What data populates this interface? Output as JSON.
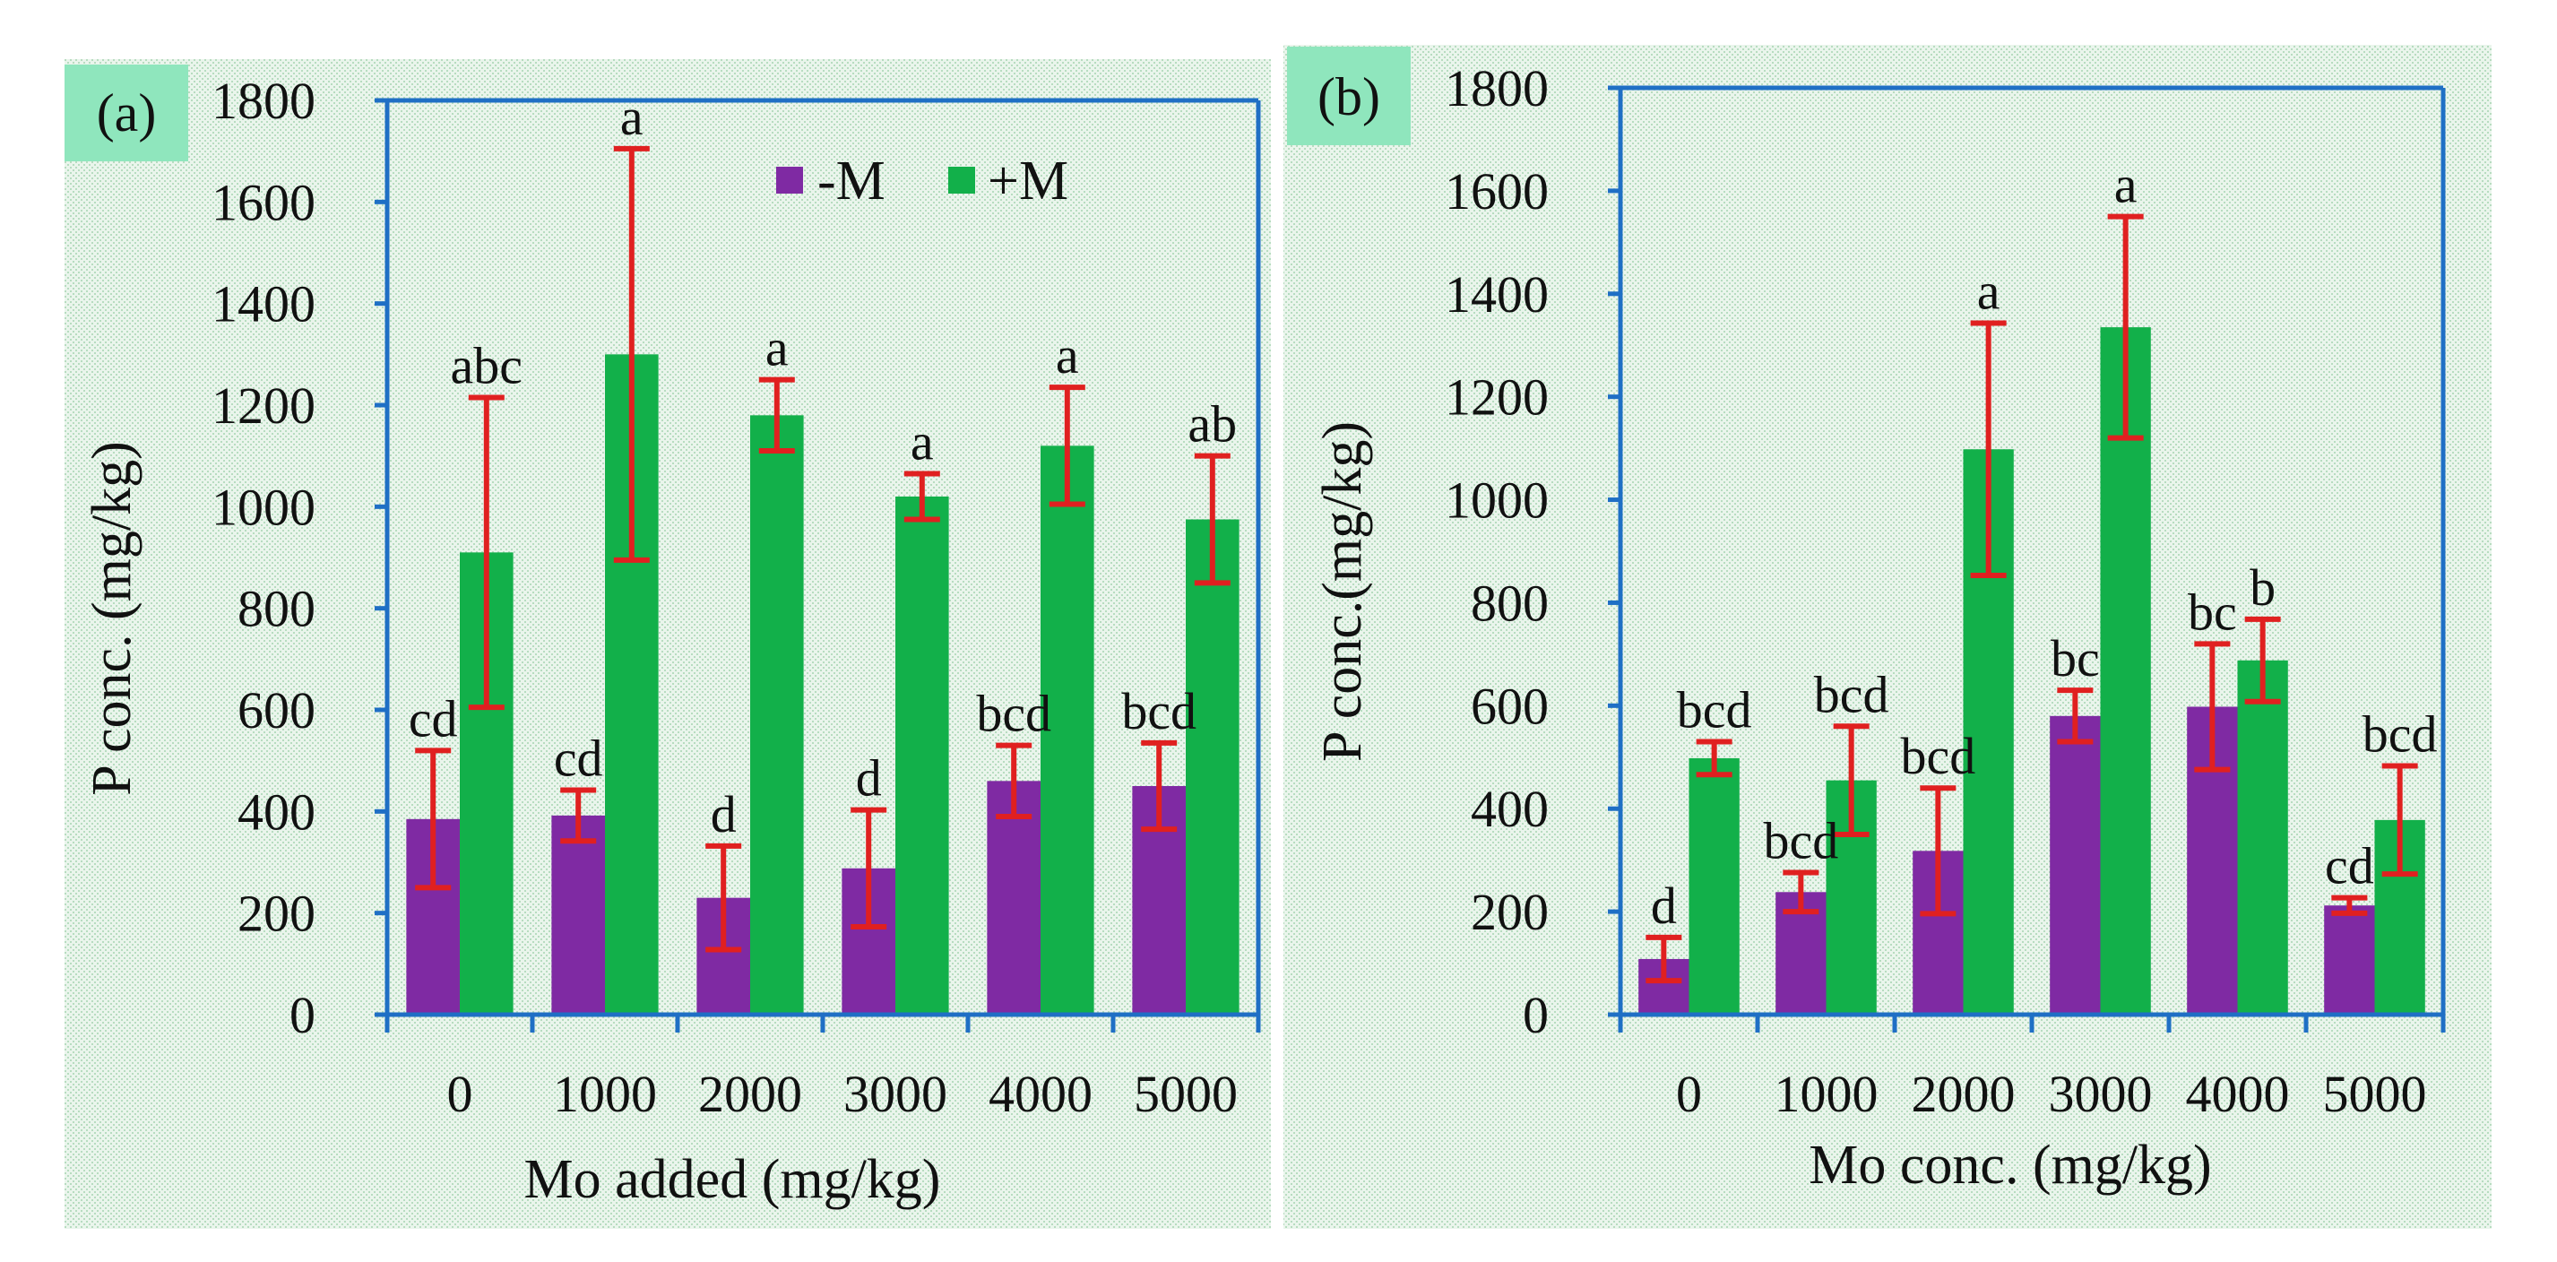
{
  "colors": {
    "minus_m": "#7f2aa3",
    "plus_m": "#12b04a",
    "axis": "#1f6fc5",
    "error_bar": "#e02020",
    "panel_bg": "#e8f3ea",
    "label_box": "#8fe6bd"
  },
  "chart_data": [
    {
      "type": "bar",
      "panel_label": "(a)",
      "xlabel": "Mo added (mg/kg)",
      "ylabel": "P conc. (mg/kg)",
      "ylim": [
        0,
        1800
      ],
      "yticks": [
        "0",
        "200",
        "400",
        "600",
        "800",
        "1000",
        "1200",
        "1400",
        "1600",
        "1800"
      ],
      "categories": [
        "0",
        "1000",
        "2000",
        "3000",
        "4000",
        "5000"
      ],
      "legend": {
        "position": "top-center",
        "entries": [
          "-M",
          "+M"
        ]
      },
      "series": [
        {
          "name": "-M",
          "values": [
            385,
            392,
            230,
            288,
            460,
            450
          ],
          "errors": [
            135,
            50,
            102,
            115,
            70,
            85
          ],
          "letters": [
            "cd",
            "cd",
            "d",
            "d",
            "bcd",
            "bcd"
          ]
        },
        {
          "name": "+M",
          "values": [
            910,
            1300,
            1180,
            1020,
            1120,
            975
          ],
          "errors": [
            305,
            405,
            70,
            45,
            115,
            125
          ],
          "letters": [
            "abc",
            "a",
            "a",
            "a",
            "a",
            "ab"
          ]
        }
      ]
    },
    {
      "type": "bar",
      "panel_label": "(b)",
      "xlabel": "Mo conc. (mg/kg)",
      "ylabel": "P conc.(mg/kg)",
      "ylim": [
        0,
        1800
      ],
      "yticks": [
        "0",
        "200",
        "400",
        "600",
        "800",
        "1000",
        "1200",
        "1400",
        "1600",
        "1800"
      ],
      "categories": [
        "0",
        "1000",
        "2000",
        "3000",
        "4000",
        "5000"
      ],
      "series": [
        {
          "name": "-M",
          "values": [
            108,
            238,
            318,
            580,
            598,
            212
          ],
          "errors": [
            42,
            38,
            122,
            50,
            122,
            15
          ],
          "letters": [
            "d",
            "bcd",
            "bcd",
            "bc",
            "bc",
            "cd"
          ]
        },
        {
          "name": "+M",
          "values": [
            498,
            455,
            1098,
            1335,
            688,
            378
          ],
          "errors": [
            32,
            105,
            245,
            215,
            80,
            105
          ],
          "letters": [
            "bcd",
            "bcd",
            "a",
            "a",
            "b",
            "bcd"
          ]
        }
      ]
    }
  ]
}
